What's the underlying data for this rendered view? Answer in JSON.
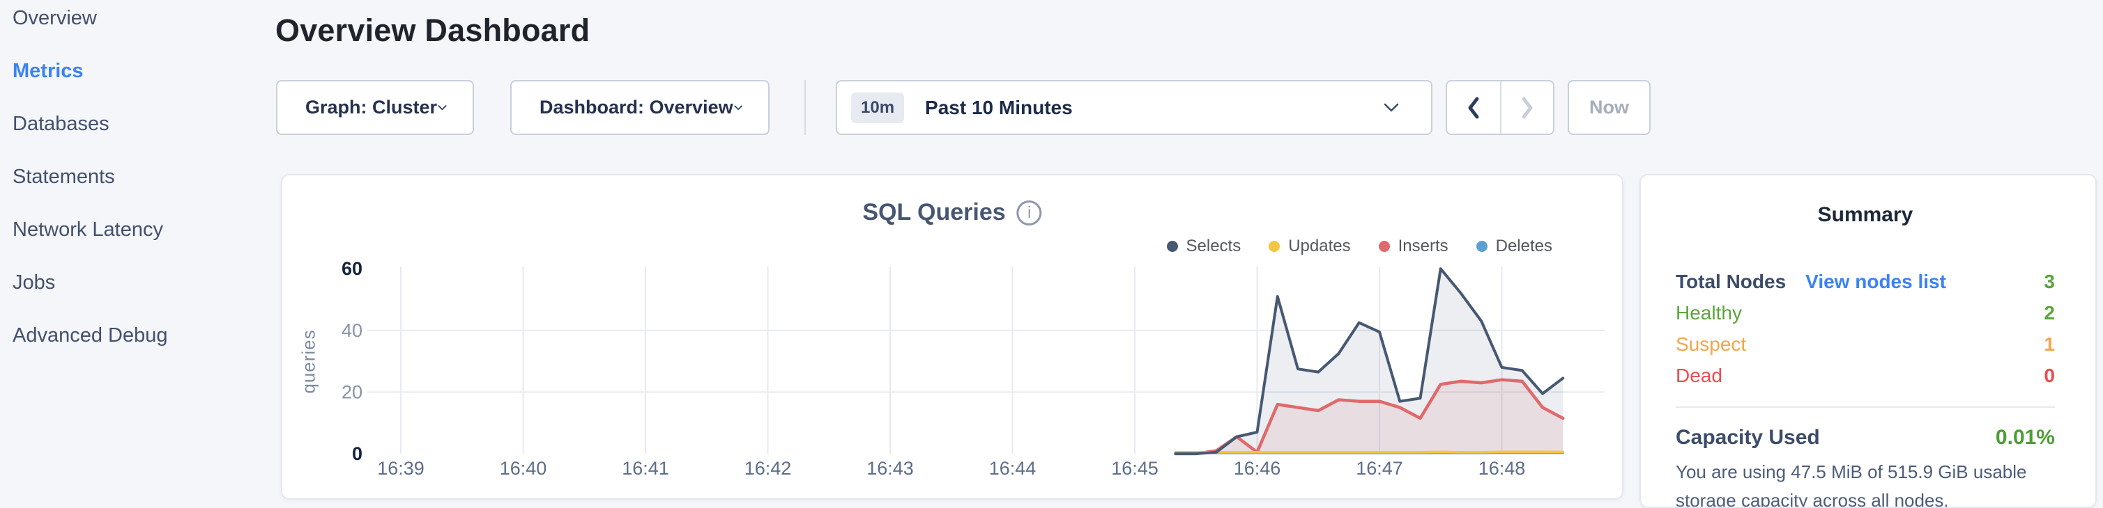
{
  "sidebar": {
    "items": [
      {
        "label": "Overview",
        "active": false
      },
      {
        "label": "Metrics",
        "active": true
      },
      {
        "label": "Databases",
        "active": false
      },
      {
        "label": "Statements",
        "active": false
      },
      {
        "label": "Network Latency",
        "active": false
      },
      {
        "label": "Jobs",
        "active": false
      },
      {
        "label": "Advanced Debug",
        "active": false
      }
    ]
  },
  "header": {
    "title": "Overview Dashboard"
  },
  "controls": {
    "graph_dropdown": {
      "label": "Graph: Cluster"
    },
    "dashboard_dropdown": {
      "label": "Dashboard: Overview"
    },
    "time_selector": {
      "badge": "10m",
      "label": "Past 10 Minutes"
    },
    "now_button": {
      "label": "Now"
    }
  },
  "chart_data": {
    "type": "area",
    "title": "SQL Queries",
    "ylabel": "queries",
    "xlabel": "",
    "legend_position": "top-right",
    "grid": true,
    "ylim": [
      0,
      60
    ],
    "yticks": [
      {
        "v": 0,
        "strong": true
      },
      {
        "v": 20,
        "strong": false
      },
      {
        "v": 40,
        "strong": false
      },
      {
        "v": 60,
        "strong": true
      }
    ],
    "grid_y": [
      20,
      40
    ],
    "x_start": "16:39:00",
    "xticks": [
      "16:39",
      "16:40",
      "16:41",
      "16:42",
      "16:43",
      "16:44",
      "16:45",
      "16:46",
      "16:47",
      "16:48"
    ],
    "x_times": [
      "16:45:20",
      "16:45:30",
      "16:45:40",
      "16:45:50",
      "16:46:00",
      "16:46:10",
      "16:46:20",
      "16:46:30",
      "16:46:40",
      "16:46:50",
      "16:47:00",
      "16:47:10",
      "16:47:20",
      "16:47:30",
      "16:47:40",
      "16:47:50",
      "16:48:00",
      "16:48:10",
      "16:48:20",
      "16:48:30"
    ],
    "series": [
      {
        "name": "Selects",
        "color": "#475872",
        "stroke_width": 4,
        "fill_opacity": 0.1,
        "values": [
          0,
          0,
          0.5,
          5.5,
          7,
          51,
          27.5,
          26.5,
          32.5,
          42.5,
          39.5,
          17,
          18,
          60,
          52,
          43,
          28,
          27,
          19.5,
          24.5
        ]
      },
      {
        "name": "Updates",
        "color": "#f5c540",
        "stroke_width": 3.5,
        "fill_opacity": 0,
        "values": [
          0.5,
          0.5,
          0.5,
          0.5,
          0.5,
          0.5,
          0.5,
          0.5,
          0.5,
          0.5,
          0.5,
          0.5,
          0.5,
          0.6,
          0.5,
          0.5,
          0.6,
          0.6,
          0.6,
          0.6
        ]
      },
      {
        "name": "Inserts",
        "color": "#e0696c",
        "stroke_width": 4.5,
        "fill_opacity": 0.13,
        "values": [
          0,
          0,
          1,
          5.5,
          0.5,
          16,
          15,
          14,
          17.5,
          17,
          17,
          15,
          11.5,
          22.5,
          23.5,
          23,
          24,
          23.5,
          15,
          11.5
        ]
      },
      {
        "name": "Deletes",
        "color": "#5b9fd3",
        "stroke_width": 3.5,
        "fill_opacity": 0,
        "values": [
          0.25,
          0.25,
          0.25,
          0.25,
          0.25,
          0.25,
          0.25,
          0.25,
          0.25,
          0.25,
          0.25,
          0.25,
          0.25,
          0.25,
          0.25,
          0.25,
          0.3,
          0.3,
          0.3,
          0.3
        ]
      }
    ]
  },
  "summary": {
    "title": "Summary",
    "total_nodes": {
      "label": "Total Nodes",
      "link": "View nodes list",
      "value": "3",
      "color": "#5aa53c"
    },
    "rows": [
      {
        "label": "Healthy",
        "value": "2",
        "color": "#5aa53c"
      },
      {
        "label": "Suspect",
        "value": "1",
        "color": "#f5a54a"
      },
      {
        "label": "Dead",
        "value": "0",
        "color": "#ee4b50"
      }
    ],
    "capacity": {
      "label": "Capacity Used",
      "value": "0.01%",
      "description": "You are using 47.5 MiB of 515.9 GiB usable storage capacity across all nodes."
    }
  }
}
